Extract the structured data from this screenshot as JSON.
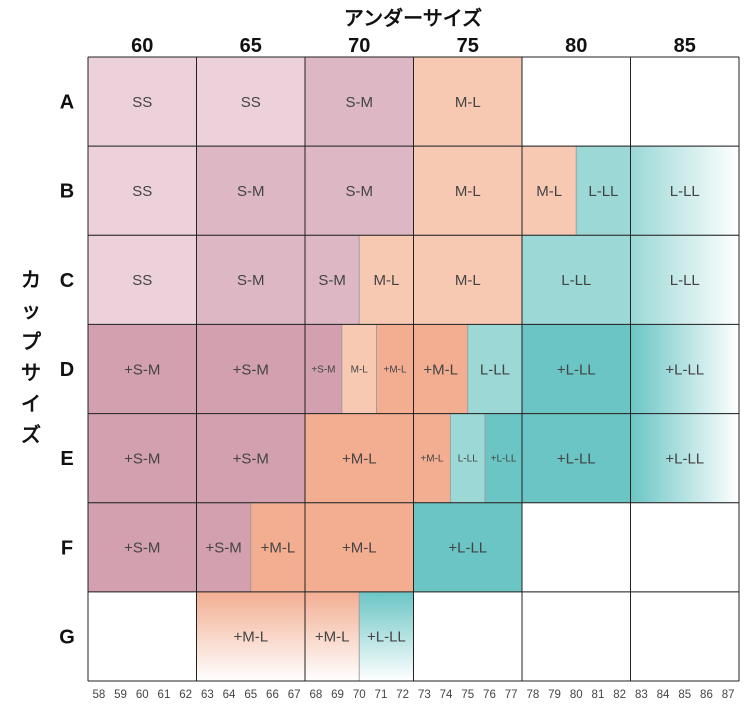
{
  "chart_data": {
    "type": "heatmap",
    "title": "アンダーサイズ",
    "ylabel": "カップサイズ",
    "columns": [
      "60",
      "65",
      "70",
      "75",
      "80",
      "85"
    ],
    "rows": [
      "A",
      "B",
      "C",
      "D",
      "E",
      "F",
      "G"
    ],
    "x_ticks": [
      58,
      59,
      60,
      61,
      62,
      63,
      64,
      65,
      66,
      67,
      68,
      69,
      70,
      71,
      72,
      73,
      74,
      75,
      76,
      77,
      78,
      79,
      80,
      81,
      82,
      83,
      84,
      85,
      86,
      87
    ],
    "colors": {
      "SS": "#ecd0da",
      "S-M": "#ddb7c4",
      "+S-M": "#d2a0ae",
      "M-L": "#f7c9b3",
      "+M-L": "#f3ae92",
      "L-LL": "#9bd8d6",
      "+L-LL": "#6bc5c5"
    },
    "cells": [
      {
        "row": "A",
        "x0": 58,
        "x1": 63,
        "label": "SS",
        "size": "normal",
        "fill": "SS"
      },
      {
        "row": "A",
        "x0": 63,
        "x1": 68,
        "label": "SS",
        "size": "normal",
        "fill": "SS"
      },
      {
        "row": "A",
        "x0": 68,
        "x1": 73,
        "label": "S-M",
        "size": "normal",
        "fill": "S-M"
      },
      {
        "row": "A",
        "x0": 73,
        "x1": 78,
        "label": "M-L",
        "size": "normal",
        "fill": "M-L"
      },
      {
        "row": "A",
        "x0": 78,
        "x1": 83,
        "label": "",
        "size": "normal",
        "fill": "none"
      },
      {
        "row": "A",
        "x0": 83,
        "x1": 88,
        "label": "",
        "size": "normal",
        "fill": "none"
      },
      {
        "row": "B",
        "x0": 58,
        "x1": 63,
        "label": "SS",
        "size": "normal",
        "fill": "SS"
      },
      {
        "row": "B",
        "x0": 63,
        "x1": 68,
        "label": "S-M",
        "size": "normal",
        "fill": "S-M"
      },
      {
        "row": "B",
        "x0": 68,
        "x1": 73,
        "label": "S-M",
        "size": "normal",
        "fill": "S-M"
      },
      {
        "row": "B",
        "x0": 73,
        "x1": 78,
        "label": "M-L",
        "size": "normal",
        "fill": "M-L"
      },
      {
        "row": "B",
        "x0": 78,
        "x1": 80.5,
        "label": "M-L",
        "size": "normal",
        "fill": "M-L"
      },
      {
        "row": "B",
        "x0": 80.5,
        "x1": 83,
        "label": "L-LL",
        "size": "normal",
        "fill": "L-LL"
      },
      {
        "row": "B",
        "x0": 83,
        "x1": 88,
        "label": "L-LL",
        "size": "normal",
        "fill": "L-LL",
        "fade": true
      },
      {
        "row": "C",
        "x0": 58,
        "x1": 63,
        "label": "SS",
        "size": "normal",
        "fill": "SS"
      },
      {
        "row": "C",
        "x0": 63,
        "x1": 68,
        "label": "S-M",
        "size": "normal",
        "fill": "S-M"
      },
      {
        "row": "C",
        "x0": 68,
        "x1": 70.5,
        "label": "S-M",
        "size": "normal",
        "fill": "S-M"
      },
      {
        "row": "C",
        "x0": 70.5,
        "x1": 73,
        "label": "M-L",
        "size": "normal",
        "fill": "M-L"
      },
      {
        "row": "C",
        "x0": 73,
        "x1": 78,
        "label": "M-L",
        "size": "normal",
        "fill": "M-L"
      },
      {
        "row": "C",
        "x0": 78,
        "x1": 83,
        "label": "L-LL",
        "size": "normal",
        "fill": "L-LL"
      },
      {
        "row": "C",
        "x0": 83,
        "x1": 88,
        "label": "L-LL",
        "size": "normal",
        "fill": "L-LL",
        "fade": true
      },
      {
        "row": "D",
        "x0": 58,
        "x1": 63,
        "label": "+S-M",
        "size": "normal",
        "fill": "+S-M"
      },
      {
        "row": "D",
        "x0": 63,
        "x1": 68,
        "label": "+S-M",
        "size": "normal",
        "fill": "+S-M"
      },
      {
        "row": "D",
        "x0": 68,
        "x1": 69.7,
        "label": "+S-M",
        "size": "small",
        "fill": "+S-M"
      },
      {
        "row": "D",
        "x0": 69.7,
        "x1": 71.3,
        "label": "M-L",
        "size": "small",
        "fill": "M-L"
      },
      {
        "row": "D",
        "x0": 71.3,
        "x1": 73,
        "label": "+M-L",
        "size": "small",
        "fill": "+M-L"
      },
      {
        "row": "D",
        "x0": 73,
        "x1": 75.5,
        "label": "+M-L",
        "size": "normal",
        "fill": "+M-L"
      },
      {
        "row": "D",
        "x0": 75.5,
        "x1": 78,
        "label": "L-LL",
        "size": "normal",
        "fill": "L-LL"
      },
      {
        "row": "D",
        "x0": 78,
        "x1": 83,
        "label": "+L-LL",
        "size": "normal",
        "fill": "+L-LL"
      },
      {
        "row": "D",
        "x0": 83,
        "x1": 88,
        "label": "+L-LL",
        "size": "normal",
        "fill": "+L-LL",
        "fade": true
      },
      {
        "row": "E",
        "x0": 58,
        "x1": 63,
        "label": "+S-M",
        "size": "normal",
        "fill": "+S-M"
      },
      {
        "row": "E",
        "x0": 63,
        "x1": 68,
        "label": "+S-M",
        "size": "normal",
        "fill": "+S-M"
      },
      {
        "row": "E",
        "x0": 68,
        "x1": 73,
        "label": "+M-L",
        "size": "normal",
        "fill": "+M-L"
      },
      {
        "row": "E",
        "x0": 73,
        "x1": 74.7,
        "label": "+M-L",
        "size": "small",
        "fill": "+M-L"
      },
      {
        "row": "E",
        "x0": 74.7,
        "x1": 76.3,
        "label": "L-LL",
        "size": "small",
        "fill": "L-LL"
      },
      {
        "row": "E",
        "x0": 76.3,
        "x1": 78,
        "label": "+L-LL",
        "size": "small",
        "fill": "+L-LL"
      },
      {
        "row": "E",
        "x0": 78,
        "x1": 83,
        "label": "+L-LL",
        "size": "normal",
        "fill": "+L-LL"
      },
      {
        "row": "E",
        "x0": 83,
        "x1": 88,
        "label": "+L-LL",
        "size": "normal",
        "fill": "+L-LL",
        "fade": true
      },
      {
        "row": "F",
        "x0": 58,
        "x1": 63,
        "label": "+S-M",
        "size": "normal",
        "fill": "+S-M"
      },
      {
        "row": "F",
        "x0": 63,
        "x1": 65.5,
        "label": "+S-M",
        "size": "normal",
        "fill": "+S-M"
      },
      {
        "row": "F",
        "x0": 65.5,
        "x1": 68,
        "label": "+M-L",
        "size": "normal",
        "fill": "+M-L"
      },
      {
        "row": "F",
        "x0": 68,
        "x1": 73,
        "label": "+M-L",
        "size": "normal",
        "fill": "+M-L"
      },
      {
        "row": "F",
        "x0": 73,
        "x1": 78,
        "label": "+L-LL",
        "size": "normal",
        "fill": "+L-LL"
      },
      {
        "row": "F",
        "x0": 78,
        "x1": 83,
        "label": "",
        "size": "normal",
        "fill": "none"
      },
      {
        "row": "F",
        "x0": 83,
        "x1": 88,
        "label": "",
        "size": "normal",
        "fill": "none"
      },
      {
        "row": "G",
        "x0": 58,
        "x1": 63,
        "label": "",
        "size": "normal",
        "fill": "none"
      },
      {
        "row": "G",
        "x0": 63,
        "x1": 68,
        "label": "+M-L",
        "size": "normal",
        "fill": "+M-L",
        "fade": "down"
      },
      {
        "row": "G",
        "x0": 68,
        "x1": 70.5,
        "label": "+M-L",
        "size": "normal",
        "fill": "+M-L",
        "fade": "down"
      },
      {
        "row": "G",
        "x0": 70.5,
        "x1": 73,
        "label": "+L-LL",
        "size": "normal",
        "fill": "+L-LL",
        "fade": "down"
      },
      {
        "row": "G",
        "x0": 73,
        "x1": 78,
        "label": "",
        "size": "normal",
        "fill": "none"
      },
      {
        "row": "G",
        "x0": 78,
        "x1": 83,
        "label": "",
        "size": "normal",
        "fill": "none"
      },
      {
        "row": "G",
        "x0": 83,
        "x1": 88,
        "label": "",
        "size": "normal",
        "fill": "none"
      }
    ]
  }
}
